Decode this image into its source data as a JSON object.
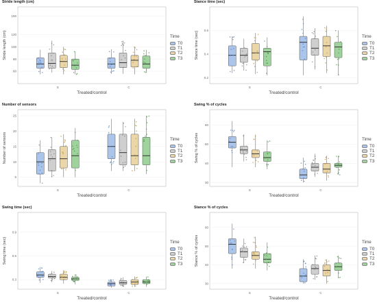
{
  "legend": {
    "title": "Time",
    "items": [
      "T0",
      "T1",
      "T2",
      "T3"
    ],
    "colors": [
      "#aac4ea",
      "#cfcfcf",
      "#ebd6a8",
      "#9fd29c"
    ]
  },
  "xaxis": {
    "label": "Treated/control",
    "groups": [
      "S",
      "C"
    ]
  },
  "chart_data": [
    {
      "type": "box",
      "title": "Stride length (cm)",
      "ylabel": "Stride length (cm)",
      "xlabel": "Treated/control",
      "ylim": [
        40,
        165
      ],
      "yticks": [
        60,
        80,
        100,
        120,
        150
      ],
      "categories": [
        "S",
        "C"
      ],
      "series": [
        {
          "name": "T0",
          "boxes": [
            {
              "min": 55,
              "q1": 65,
              "median": 72,
              "q3": 82,
              "max": 95
            },
            {
              "min": 56,
              "q1": 65,
              "median": 72,
              "q3": 82,
              "max": 96
            }
          ]
        },
        {
          "name": "T1",
          "boxes": [
            {
              "min": 58,
              "q1": 65,
              "median": 73,
              "q3": 90,
              "max": 110
            },
            {
              "min": 56,
              "q1": 66,
              "median": 74,
              "q3": 90,
              "max": 110
            }
          ]
        },
        {
          "name": "T2",
          "boxes": [
            {
              "min": 55,
              "q1": 66,
              "median": 76,
              "q3": 86,
              "max": 100
            },
            {
              "min": 55,
              "q1": 67,
              "median": 78,
              "q3": 86,
              "max": 100
            }
          ]
        },
        {
          "name": "T3",
          "boxes": [
            {
              "min": 55,
              "q1": 63,
              "median": 70,
              "q3": 80,
              "max": 92
            },
            {
              "min": 58,
              "q1": 65,
              "median": 72,
              "q3": 85,
              "max": 95
            }
          ]
        }
      ]
    },
    {
      "type": "box",
      "title": "Stance time (sec)",
      "ylabel": "Stance time (sec)",
      "xlabel": "Treated/control",
      "ylim": [
        0.15,
        0.8
      ],
      "yticks": [
        0.2,
        0.4,
        0.6
      ],
      "categories": [
        "S",
        "C"
      ],
      "series": [
        {
          "name": "T0",
          "boxes": [
            {
              "min": 0.24,
              "q1": 0.3,
              "median": 0.39,
              "q3": 0.47,
              "max": 0.55
            },
            {
              "min": 0.22,
              "q1": 0.35,
              "median": 0.5,
              "q3": 0.55,
              "max": 0.72
            }
          ]
        },
        {
          "name": "T1",
          "boxes": [
            {
              "min": 0.26,
              "q1": 0.33,
              "median": 0.39,
              "q3": 0.45,
              "max": 0.53
            },
            {
              "min": 0.27,
              "q1": 0.39,
              "median": 0.45,
              "q3": 0.53,
              "max": 0.62
            }
          ]
        },
        {
          "name": "T2",
          "boxes": [
            {
              "min": 0.23,
              "q1": 0.35,
              "median": 0.41,
              "q3": 0.49,
              "max": 0.58
            },
            {
              "min": 0.24,
              "q1": 0.38,
              "median": 0.47,
              "q3": 0.55,
              "max": 0.64
            }
          ]
        },
        {
          "name": "T3",
          "boxes": [
            {
              "min": 0.22,
              "q1": 0.3,
              "median": 0.42,
              "q3": 0.45,
              "max": 0.54
            },
            {
              "min": 0.22,
              "q1": 0.37,
              "median": 0.46,
              "q3": 0.5,
              "max": 0.6
            }
          ]
        }
      ]
    },
    {
      "type": "box",
      "title": "Number of sensors",
      "ylabel": "Number of sensors",
      "xlabel": "Treated/control",
      "ylim": [
        2,
        27
      ],
      "yticks": [
        5,
        10,
        15,
        20,
        25
      ],
      "categories": [
        "S",
        "C"
      ],
      "series": [
        {
          "name": "T0",
          "boxes": [
            {
              "min": 3,
              "q1": 6,
              "median": 10,
              "q3": 13,
              "max": 17
            },
            {
              "min": 7,
              "q1": 11,
              "median": 15,
              "q3": 19,
              "max": 24
            }
          ]
        },
        {
          "name": "T1",
          "boxes": [
            {
              "min": 5,
              "q1": 7,
              "median": 11,
              "q3": 14,
              "max": 18
            },
            {
              "min": 7,
              "q1": 9,
              "median": 13,
              "q3": 19,
              "max": 23
            }
          ]
        },
        {
          "name": "T2",
          "boxes": [
            {
              "min": 5,
              "q1": 8,
              "median": 11,
              "q3": 15,
              "max": 19
            },
            {
              "min": 7,
              "q1": 9,
              "median": 12,
              "q3": 19,
              "max": 24
            }
          ]
        },
        {
          "name": "T3",
          "boxes": [
            {
              "min": 5,
              "q1": 8,
              "median": 12,
              "q3": 17,
              "max": 21
            },
            {
              "min": 6,
              "q1": 9,
              "median": 12,
              "q3": 18,
              "max": 25
            }
          ]
        }
      ]
    },
    {
      "type": "box",
      "title": "Swing % of cycles",
      "ylabel": "Swing % of cycles",
      "xlabel": "Treated/control",
      "ylim": [
        28,
        68
      ],
      "yticks": [
        30,
        40,
        50,
        60
      ],
      "categories": [
        "S",
        "C"
      ],
      "series": [
        {
          "name": "T0",
          "boxes": [
            {
              "min": 38,
              "q1": 48,
              "median": 51,
              "q3": 54,
              "max": 62
            },
            {
              "min": 30,
              "q1": 32,
              "median": 34,
              "q3": 37,
              "max": 43
            }
          ]
        },
        {
          "name": "T1",
          "boxes": [
            {
              "min": 41,
              "q1": 45,
              "median": 47,
              "q3": 49,
              "max": 55
            },
            {
              "min": 33,
              "q1": 36,
              "median": 38,
              "q3": 40,
              "max": 45
            }
          ]
        },
        {
          "name": "T2",
          "boxes": [
            {
              "min": 38,
              "q1": 43,
              "median": 45,
              "q3": 47,
              "max": 55
            },
            {
              "min": 31,
              "q1": 35,
              "median": 37,
              "q3": 40,
              "max": 44
            }
          ]
        },
        {
          "name": "T3",
          "boxes": [
            {
              "min": 37,
              "q1": 41,
              "median": 43,
              "q3": 46,
              "max": 52
            },
            {
              "min": 34,
              "q1": 38,
              "median": 39,
              "q3": 40,
              "max": 44
            }
          ]
        }
      ]
    },
    {
      "type": "box",
      "title": "Swing time (sec)",
      "ylabel": "Swing time (sec)",
      "xlabel": "Treated/control",
      "ylim": [
        0.18,
        1.15
      ],
      "yticks": [
        0.3,
        0.6,
        0.9
      ],
      "categories": [
        "S",
        "C"
      ],
      "series": [
        {
          "name": "T0",
          "boxes": [
            {
              "min": 0.26,
              "q1": 0.33,
              "median": 0.36,
              "q3": 0.4,
              "max": 0.46
            },
            {
              "min": 0.2,
              "q1": 0.22,
              "median": 0.25,
              "q3": 0.27,
              "max": 0.3
            }
          ]
        },
        {
          "name": "T1",
          "boxes": [
            {
              "min": 0.27,
              "q1": 0.32,
              "median": 0.34,
              "q3": 0.37,
              "max": 0.41
            },
            {
              "min": 0.21,
              "q1": 0.24,
              "median": 0.26,
              "q3": 0.29,
              "max": 0.33
            }
          ]
        },
        {
          "name": "T2",
          "boxes": [
            {
              "min": 0.25,
              "q1": 0.3,
              "median": 0.33,
              "q3": 0.37,
              "max": 0.42
            },
            {
              "min": 0.21,
              "q1": 0.24,
              "median": 0.27,
              "q3": 0.3,
              "max": 0.34
            }
          ]
        },
        {
          "name": "T3",
          "boxes": [
            {
              "min": 0.24,
              "q1": 0.29,
              "median": 0.31,
              "q3": 0.33,
              "max": 0.37
            },
            {
              "min": 0.21,
              "q1": 0.25,
              "median": 0.27,
              "q3": 0.3,
              "max": 0.34
            }
          ]
        }
      ]
    },
    {
      "type": "box",
      "title": "Stance % of cycles",
      "ylabel": "Stance % of cycles",
      "xlabel": "Treated/control",
      "ylim": [
        27,
        68
      ],
      "yticks": [
        30,
        40,
        50,
        60
      ],
      "categories": [
        "S",
        "C"
      ],
      "series": [
        {
          "name": "T0",
          "boxes": [
            {
              "min": 38,
              "q1": 46,
              "median": 51,
              "q3": 54,
              "max": 62
            },
            {
              "min": 30,
              "q1": 31,
              "median": 34,
              "q3": 38,
              "max": 43
            }
          ]
        },
        {
          "name": "T1",
          "boxes": [
            {
              "min": 41,
              "q1": 44,
              "median": 47,
              "q3": 49,
              "max": 54
            },
            {
              "min": 32,
              "q1": 35,
              "median": 38,
              "q3": 40,
              "max": 45
            }
          ]
        },
        {
          "name": "T2",
          "boxes": [
            {
              "min": 38,
              "q1": 43,
              "median": 45,
              "q3": 47,
              "max": 55
            },
            {
              "min": 30,
              "q1": 34,
              "median": 37,
              "q3": 40,
              "max": 43
            }
          ]
        },
        {
          "name": "T3",
          "boxes": [
            {
              "min": 37,
              "q1": 41,
              "median": 43,
              "q3": 46,
              "max": 52
            },
            {
              "min": 33,
              "q1": 37,
              "median": 39,
              "q3": 41,
              "max": 45
            }
          ]
        }
      ]
    }
  ]
}
